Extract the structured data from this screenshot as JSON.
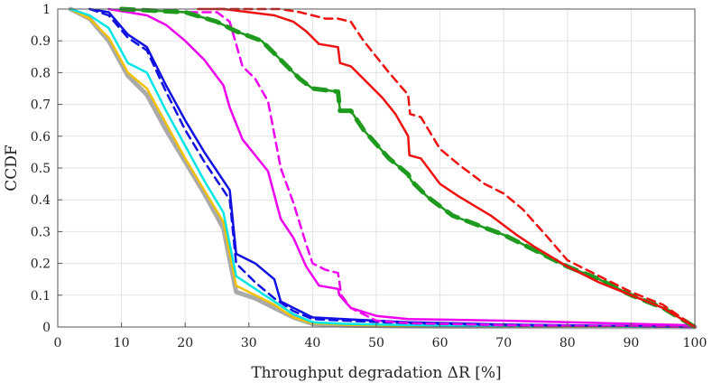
{
  "chart_data": {
    "type": "line",
    "title": "",
    "xlabel": "Throughput degradation ΔR [%]",
    "ylabel": "CCDF",
    "xlim": [
      0,
      100
    ],
    "ylim": [
      0,
      1
    ],
    "xticks": [
      0,
      10,
      20,
      30,
      40,
      50,
      60,
      70,
      80,
      90,
      100
    ],
    "yticks": [
      0,
      0.1,
      0.2,
      0.3,
      0.4,
      0.5,
      0.6,
      0.7,
      0.8,
      0.9,
      1
    ],
    "xtick_labels": [
      "0",
      "10",
      "20",
      "30",
      "40",
      "50",
      "60",
      "70",
      "80",
      "90",
      "100"
    ],
    "ytick_labels": [
      "0",
      "0.1",
      "0.2",
      "0.3",
      "0.4",
      "0.5",
      "0.6",
      "0.7",
      "0.8",
      "0.9",
      "1"
    ],
    "grid": true,
    "series": [
      {
        "name": "gray",
        "color": "#aaaaaa",
        "width": 5,
        "dash": "",
        "x": [
          2,
          5,
          8,
          11,
          14,
          17,
          20,
          23,
          26,
          28,
          31,
          34,
          37,
          40,
          45,
          55,
          70,
          100
        ],
        "y": [
          1,
          0.97,
          0.9,
          0.79,
          0.73,
          0.62,
          0.52,
          0.42,
          0.31,
          0.11,
          0.09,
          0.06,
          0.03,
          0.01,
          0.005,
          0.002,
          0.001,
          0
        ]
      },
      {
        "name": "yellow",
        "color": "#f2c200",
        "width": 2.5,
        "dash": "",
        "x": [
          2,
          5,
          8,
          11,
          14,
          17,
          20,
          23,
          26,
          28,
          31,
          34,
          37,
          40,
          45,
          55,
          70,
          100
        ],
        "y": [
          1,
          0.97,
          0.91,
          0.8,
          0.75,
          0.64,
          0.53,
          0.43,
          0.33,
          0.13,
          0.1,
          0.07,
          0.03,
          0.012,
          0.007,
          0.004,
          0.002,
          0
        ]
      },
      {
        "name": "cyan",
        "color": "#00e6e6",
        "width": 2.5,
        "dash": "",
        "x": [
          2,
          5,
          8,
          11,
          14,
          17,
          20,
          23,
          26,
          28,
          31,
          34,
          37,
          40,
          45,
          55,
          70,
          100
        ],
        "y": [
          1,
          0.98,
          0.94,
          0.83,
          0.8,
          0.68,
          0.57,
          0.46,
          0.36,
          0.16,
          0.12,
          0.08,
          0.04,
          0.015,
          0.01,
          0.006,
          0.003,
          0
        ]
      },
      {
        "name": "blue-dashed",
        "color": "#1010e0",
        "width": 2.5,
        "dash": "9 6",
        "x": [
          5,
          8,
          11,
          14,
          17,
          20,
          23,
          26,
          27,
          28,
          31,
          34,
          37,
          40,
          45,
          55,
          70,
          100
        ],
        "y": [
          1,
          0.98,
          0.91,
          0.87,
          0.74,
          0.62,
          0.52,
          0.43,
          0.4,
          0.2,
          0.14,
          0.09,
          0.05,
          0.025,
          0.02,
          0.012,
          0.006,
          0
        ]
      },
      {
        "name": "blue",
        "color": "#1010e0",
        "width": 2.5,
        "dash": "",
        "x": [
          5,
          8,
          11,
          14,
          17,
          20,
          23,
          26,
          27,
          28,
          31,
          34,
          35,
          37,
          40,
          45,
          55,
          70,
          100
        ],
        "y": [
          1,
          0.99,
          0.92,
          0.88,
          0.76,
          0.65,
          0.55,
          0.46,
          0.43,
          0.23,
          0.2,
          0.15,
          0.08,
          0.06,
          0.03,
          0.025,
          0.015,
          0.008,
          0
        ]
      },
      {
        "name": "magenta",
        "color": "#ee00ee",
        "width": 2.5,
        "dash": "",
        "x": [
          8,
          14,
          17,
          20,
          23,
          26,
          27,
          29,
          33,
          35,
          37,
          39,
          41,
          44,
          44.2,
          46,
          50,
          55,
          70,
          100
        ],
        "y": [
          1,
          0.98,
          0.95,
          0.9,
          0.84,
          0.76,
          0.69,
          0.59,
          0.49,
          0.34,
          0.28,
          0.19,
          0.13,
          0.12,
          0.1,
          0.06,
          0.035,
          0.025,
          0.02,
          0.005
        ]
      },
      {
        "name": "magenta-dashed",
        "color": "#ee00ee",
        "width": 2.5,
        "dash": "9 6",
        "x": [
          10,
          20,
          25,
          27,
          29,
          31,
          33,
          35,
          37,
          39,
          40,
          42,
          44,
          44.5,
          46,
          50,
          55,
          70,
          100
        ],
        "y": [
          1,
          0.99,
          0.99,
          0.96,
          0.82,
          0.78,
          0.71,
          0.5,
          0.39,
          0.26,
          0.2,
          0.18,
          0.17,
          0.1,
          0.06,
          0.02,
          0.012,
          0.006,
          0
        ]
      },
      {
        "name": "green",
        "color": "#1e9a1e",
        "width": 2.5,
        "dash": "",
        "x": [
          10,
          20,
          25,
          28,
          32,
          35,
          38,
          40,
          44,
          44.3,
          46,
          48,
          52,
          55,
          55.5,
          58,
          62,
          66,
          70,
          75,
          80,
          85,
          90,
          95,
          100
        ],
        "y": [
          1,
          0.99,
          0.96,
          0.93,
          0.9,
          0.84,
          0.78,
          0.75,
          0.74,
          0.68,
          0.68,
          0.62,
          0.53,
          0.48,
          0.46,
          0.41,
          0.35,
          0.32,
          0.29,
          0.24,
          0.19,
          0.15,
          0.1,
          0.06,
          0
        ]
      },
      {
        "name": "green-dashed",
        "color": "#1e9a1e",
        "width": 5,
        "dash": "14 10",
        "x": [
          10,
          20,
          25,
          28,
          32,
          35,
          38,
          40,
          44,
          44.3,
          46,
          48,
          52,
          55,
          55.5,
          58,
          62,
          66,
          70,
          75,
          80,
          85,
          90,
          95,
          100
        ],
        "y": [
          1,
          0.99,
          0.96,
          0.93,
          0.9,
          0.84,
          0.78,
          0.75,
          0.74,
          0.68,
          0.68,
          0.62,
          0.53,
          0.48,
          0.46,
          0.41,
          0.35,
          0.32,
          0.29,
          0.24,
          0.19,
          0.15,
          0.1,
          0.06,
          0
        ]
      },
      {
        "name": "red",
        "color": "#ee1111",
        "width": 2.5,
        "dash": "",
        "x": [
          22,
          26,
          30,
          34,
          37,
          39,
          41,
          44,
          44.3,
          46,
          48,
          51,
          53,
          55,
          55.2,
          57,
          60,
          63,
          68,
          72,
          75,
          80,
          85,
          90,
          95,
          100
        ],
        "y": [
          1,
          1,
          0.99,
          0.98,
          0.96,
          0.93,
          0.89,
          0.88,
          0.83,
          0.82,
          0.78,
          0.72,
          0.67,
          0.6,
          0.54,
          0.53,
          0.45,
          0.41,
          0.35,
          0.29,
          0.25,
          0.19,
          0.14,
          0.1,
          0.06,
          0
        ]
      },
      {
        "name": "red-dashed",
        "color": "#ee1111",
        "width": 2.5,
        "dash": "9 6",
        "x": [
          25,
          30,
          35,
          38,
          40,
          42,
          44,
          46,
          48,
          52,
          55,
          55.3,
          57,
          60,
          63,
          67,
          70,
          73,
          77,
          80,
          85,
          90,
          95,
          100
        ],
        "y": [
          1,
          1,
          1,
          0.99,
          0.98,
          0.97,
          0.97,
          0.96,
          0.9,
          0.8,
          0.73,
          0.67,
          0.66,
          0.56,
          0.51,
          0.45,
          0.42,
          0.37,
          0.28,
          0.21,
          0.16,
          0.11,
          0.07,
          0
        ]
      }
    ]
  }
}
